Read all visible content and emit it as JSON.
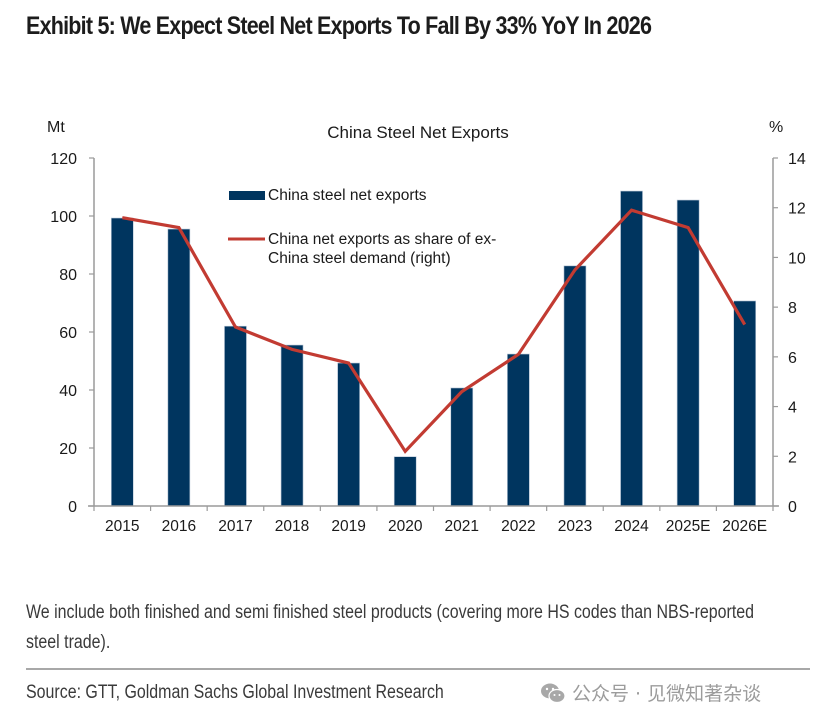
{
  "header": {
    "title": "Exhibit 5: We Expect Steel Net Exports To Fall By 33% YoY In 2026"
  },
  "chart_data": {
    "type": "bar",
    "title": "China Steel Net Exports",
    "xlabel": "",
    "ylabel": "Mt",
    "y2label": "%",
    "categories": [
      "2015",
      "2016",
      "2017",
      "2018",
      "2019",
      "2020",
      "2021",
      "2022",
      "2023",
      "2024",
      "2025E",
      "2026E"
    ],
    "ylim": [
      0,
      120
    ],
    "yticks": [
      0,
      20,
      40,
      60,
      80,
      100,
      120
    ],
    "y2lim": [
      0,
      14
    ],
    "y2ticks": [
      0,
      2,
      4,
      6,
      8,
      10,
      12,
      14
    ],
    "grid": false,
    "legend_position": "top-left-inside",
    "series": [
      {
        "name": "China steel net exports",
        "type": "bar",
        "axis": "left",
        "color": "#00355f",
        "values": [
          99.3,
          95.5,
          62.0,
          55.5,
          49.3,
          17.0,
          40.7,
          52.4,
          82.8,
          108.6,
          105.5,
          70.7
        ]
      },
      {
        "name": "China net exports as share of ex-China steel demand (right)",
        "legend_lines": [
          "China net exports as share of ex-",
          "China steel demand (right)"
        ],
        "type": "line",
        "axis": "right",
        "color": "#c23b32",
        "values": [
          11.6,
          11.2,
          7.2,
          6.3,
          5.75,
          2.2,
          4.6,
          6.1,
          9.5,
          11.9,
          11.2,
          7.3
        ]
      }
    ]
  },
  "footer": {
    "note": "We include both finished and semi finished steel products (covering more HS codes than NBS-reported steel trade).",
    "source": "Source: GTT, Goldman Sachs Global Investment Research",
    "watermark": "公众号 · 见微知著杂谈",
    "watermark_icon": "wechat-icon"
  }
}
